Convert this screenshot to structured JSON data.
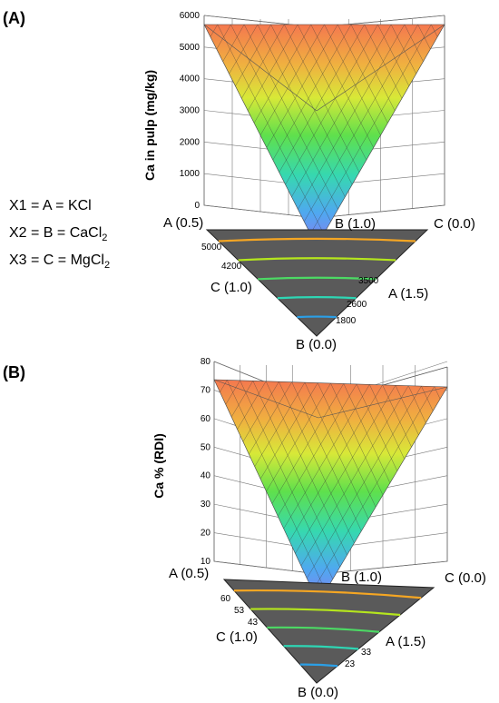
{
  "legend": {
    "lines": [
      {
        "prefix": "X1 = A = KCl",
        "sub": ""
      },
      {
        "prefix": "X2 = B = CaCl",
        "sub": "2"
      },
      {
        "prefix": "X3 = C = MgCl",
        "sub": "2"
      }
    ]
  },
  "chart_data": [
    {
      "panel": "(A)",
      "type": "surface",
      "ylabel": "Ca in pulp (mg/kg)",
      "z_ticks": [
        "0",
        "1000",
        "2000",
        "3000",
        "4000",
        "5000",
        "6000"
      ],
      "zlim": [
        0,
        6000
      ],
      "vertex_labels": {
        "top_left": "A (0.5)",
        "top_middle": "B (1.0)",
        "top_right": "C (0.0)",
        "bottom": "B (0.0)",
        "left_edge": "C (1.0)",
        "right_edge": "A (1.5)"
      },
      "contour_labels_left": [
        "5000",
        "4200"
      ],
      "contour_labels_right": [
        "3500",
        "2600",
        "1800"
      ],
      "contours": [
        {
          "level": 5000,
          "color": "#f5a623"
        },
        {
          "level": 4200,
          "color": "#b5e61d"
        },
        {
          "level": 3500,
          "color": "#4cd964"
        },
        {
          "level": 2600,
          "color": "#2ed6b4"
        },
        {
          "level": 1800,
          "color": "#2b9fe6"
        }
      ]
    },
    {
      "panel": "(B)",
      "type": "surface",
      "ylabel": "Ca % (RDI)",
      "z_ticks": [
        "10",
        "20",
        "30",
        "40",
        "50",
        "60",
        "70",
        "80"
      ],
      "zlim": [
        10,
        80
      ],
      "vertex_labels": {
        "top_left": "A (0.5)",
        "top_middle": "B (1.0)",
        "top_right": "C (0.0)",
        "bottom": "B (0.0)",
        "left_edge": "C (1.0)",
        "right_edge": "A (1.5)"
      },
      "contour_labels_left": [
        "60",
        "53",
        "43"
      ],
      "contour_labels_right": [
        "33",
        "23"
      ],
      "contours": [
        {
          "level": 60,
          "color": "#f5a623"
        },
        {
          "level": 53,
          "color": "#b5e61d"
        },
        {
          "level": 43,
          "color": "#4cd964"
        },
        {
          "level": 33,
          "color": "#2ed6b4"
        },
        {
          "level": 23,
          "color": "#2b9fe6"
        }
      ]
    }
  ]
}
